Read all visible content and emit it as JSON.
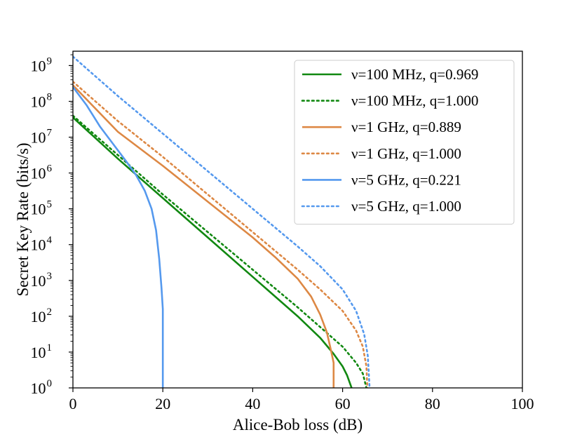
{
  "chart_data": {
    "type": "line",
    "title": "",
    "xlabel": "Alice-Bob loss (dB)",
    "ylabel": "Secret Key Rate (bits/s)",
    "xlim": [
      0,
      100
    ],
    "ylim_log10": [
      0,
      9.4
    ],
    "yscale": "log",
    "grid": false,
    "legend_position": "top-right",
    "x_ticks": [
      0,
      20,
      40,
      60,
      80,
      100
    ],
    "x_tick_labels": [
      "0",
      "20",
      "40",
      "60",
      "80",
      "100"
    ],
    "y_ticks_log10": [
      0,
      1,
      2,
      3,
      4,
      5,
      6,
      7,
      8,
      9
    ],
    "y_tick_base": "10",
    "y_tick_exponents": [
      "0",
      "1",
      "2",
      "3",
      "4",
      "5",
      "6",
      "7",
      "8",
      "9"
    ],
    "series": [
      {
        "name": "ν=100 MHz, q=0.969",
        "color": "#118811",
        "style": "solid",
        "points_log10": [
          [
            0,
            7.55
          ],
          [
            10,
            6.4
          ],
          [
            20,
            5.3
          ],
          [
            30,
            4.2
          ],
          [
            40,
            3.1
          ],
          [
            50,
            2.0
          ],
          [
            55,
            1.4
          ],
          [
            58,
            0.95
          ],
          [
            60,
            0.6
          ],
          [
            61,
            0.35
          ],
          [
            62,
            0.0
          ]
        ]
      },
      {
        "name": "ν=100 MHz, q=1.000",
        "color": "#118811",
        "style": "dotted",
        "points_log10": [
          [
            0,
            7.6
          ],
          [
            10,
            6.5
          ],
          [
            20,
            5.4
          ],
          [
            30,
            4.35
          ],
          [
            40,
            3.3
          ],
          [
            50,
            2.25
          ],
          [
            55,
            1.7
          ],
          [
            60,
            1.15
          ],
          [
            63,
            0.7
          ],
          [
            64.5,
            0.4
          ],
          [
            65,
            0.15
          ],
          [
            65.3,
            0.0
          ]
        ]
      },
      {
        "name": "ν=1 GHz, q=0.889",
        "color": "#DD8844",
        "style": "solid",
        "points_log10": [
          [
            0,
            8.45
          ],
          [
            10,
            7.15
          ],
          [
            20,
            6.2
          ],
          [
            30,
            5.2
          ],
          [
            40,
            4.2
          ],
          [
            45,
            3.65
          ],
          [
            50,
            3.05
          ],
          [
            53,
            2.55
          ],
          [
            55,
            2.05
          ],
          [
            56.5,
            1.55
          ],
          [
            57.5,
            1.0
          ],
          [
            58,
            0.7
          ],
          [
            58,
            0.0
          ]
        ]
      },
      {
        "name": "ν=1 GHz, q=1.000",
        "color": "#DD8844",
        "style": "dotted",
        "points_log10": [
          [
            0,
            8.55
          ],
          [
            10,
            7.45
          ],
          [
            20,
            6.45
          ],
          [
            30,
            5.4
          ],
          [
            40,
            4.35
          ],
          [
            50,
            3.3
          ],
          [
            55,
            2.75
          ],
          [
            60,
            2.15
          ],
          [
            63,
            1.6
          ],
          [
            64.5,
            1.15
          ],
          [
            65.3,
            0.6
          ],
          [
            65.5,
            0.0
          ]
        ]
      },
      {
        "name": "ν=5 GHz, q=0.221",
        "color": "#5599EE",
        "style": "solid",
        "points_log10": [
          [
            0,
            8.4
          ],
          [
            3,
            7.9
          ],
          [
            6,
            7.3
          ],
          [
            9,
            6.8
          ],
          [
            12,
            6.3
          ],
          [
            14,
            5.95
          ],
          [
            16,
            5.5
          ],
          [
            17.5,
            5.0
          ],
          [
            18.5,
            4.4
          ],
          [
            19.2,
            3.6
          ],
          [
            19.7,
            2.8
          ],
          [
            20,
            2.2
          ],
          [
            20,
            0.0
          ]
        ]
      },
      {
        "name": "ν=5 GHz, q=1.000",
        "color": "#5599EE",
        "style": "dotted",
        "points_log10": [
          [
            0,
            9.25
          ],
          [
            10,
            8.15
          ],
          [
            20,
            7.1
          ],
          [
            30,
            6.05
          ],
          [
            40,
            5.0
          ],
          [
            50,
            3.95
          ],
          [
            55,
            3.4
          ],
          [
            60,
            2.75
          ],
          [
            63,
            2.15
          ],
          [
            64.8,
            1.5
          ],
          [
            65.6,
            0.9
          ],
          [
            66,
            0.0
          ]
        ]
      }
    ]
  }
}
